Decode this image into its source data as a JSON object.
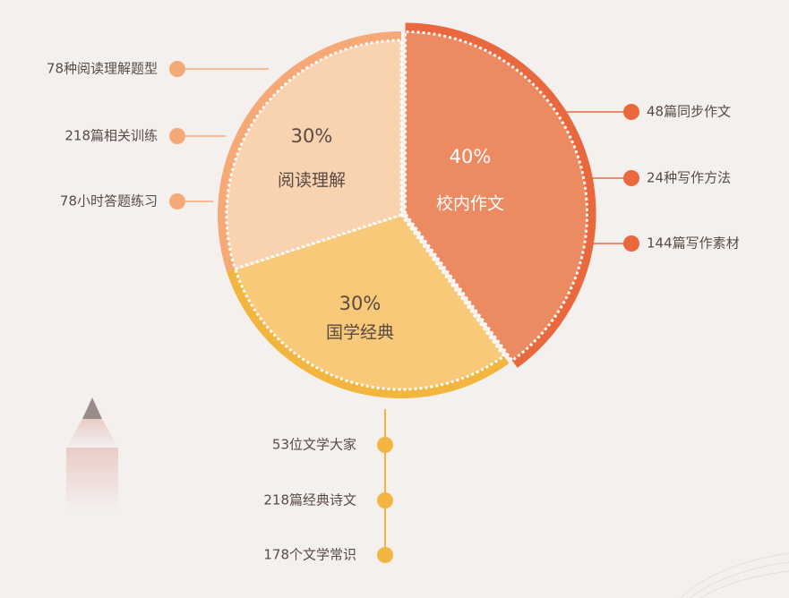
{
  "chart_data": {
    "type": "pie",
    "slices": [
      {
        "label": "校内作文",
        "value": 40,
        "percent_text": "40%",
        "color": "#ec8a62",
        "text_color": "#ffffff",
        "items": [
          "48篇同步作文",
          "24种写作方法",
          "144篇写作素材"
        ],
        "dot_color": "#e9683e"
      },
      {
        "label": "国学经典",
        "value": 30,
        "percent_text": "30%",
        "color": "#f7c978",
        "text_color": "#5a4a44",
        "items": [
          "53位文学大家",
          "218篇经典诗文",
          "178个文学常识"
        ],
        "dot_color": "#f2b640"
      },
      {
        "label": "阅读理解",
        "value": 30,
        "percent_text": "30%",
        "color": "#f9d3b0",
        "text_color": "#5a4a44",
        "items": [
          "78种阅读理解题型",
          "218篇相关训练",
          "78小时答题练习"
        ],
        "dot_color": "#f5a977"
      }
    ],
    "rim_colors": [
      "#e9683e",
      "#f2b640",
      "#f5a977"
    ],
    "title": "",
    "legend": "none"
  }
}
